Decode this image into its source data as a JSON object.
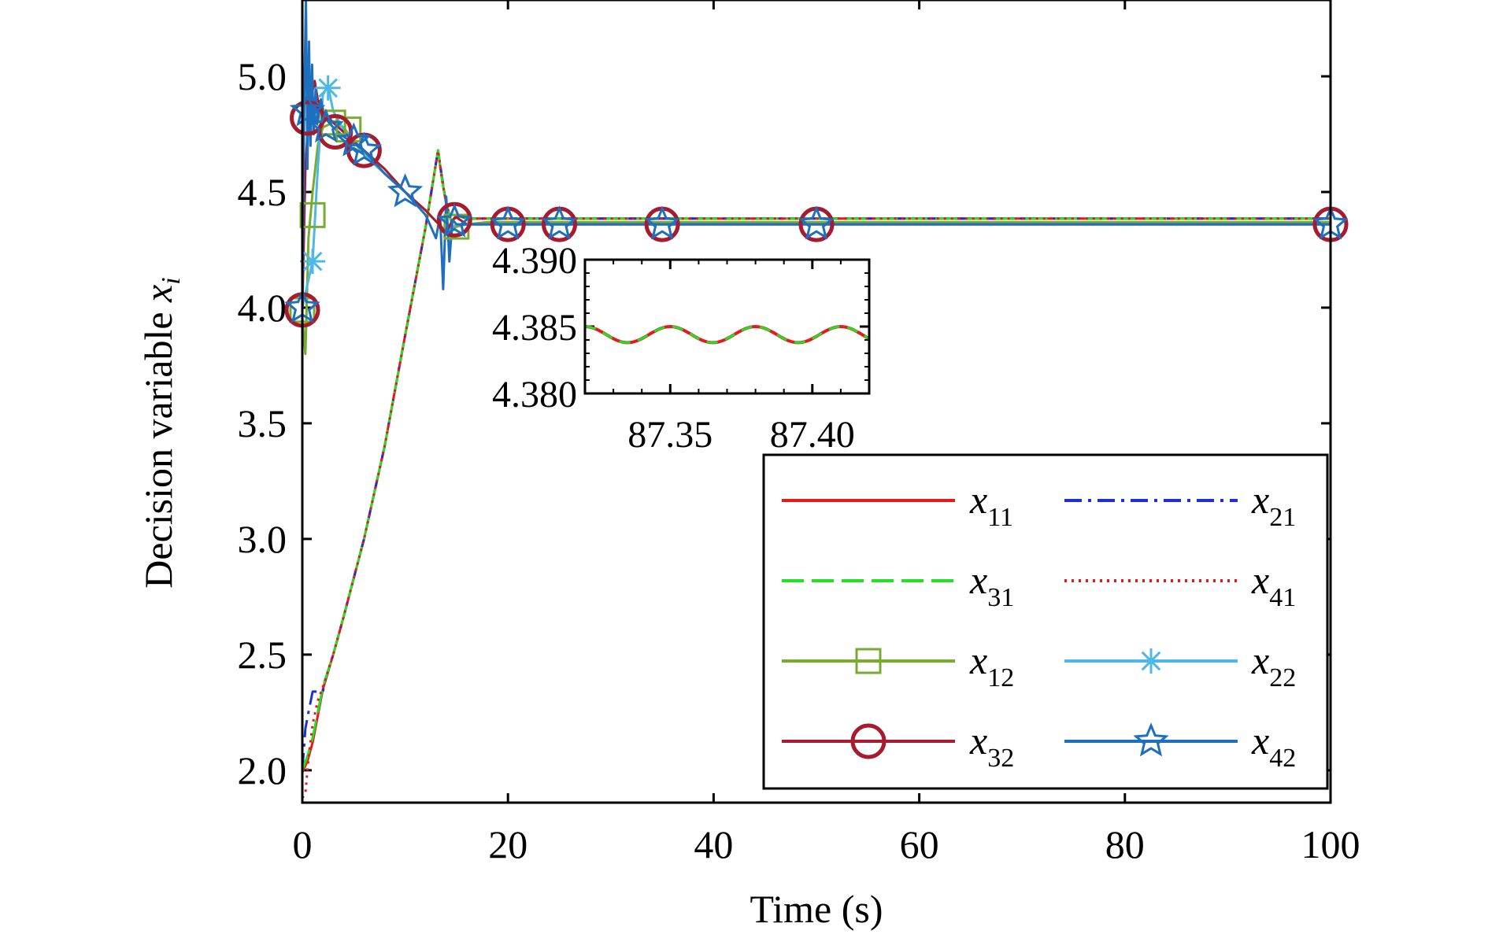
{
  "chart_data": {
    "type": "line",
    "xlabel": "Time (s)",
    "ylabel_main": "Decision variable ",
    "ylabel_var": "x",
    "ylabel_sub": "i",
    "xlim": [
      0,
      100
    ],
    "ylim": [
      1.86,
      5.33
    ],
    "xticks": [
      0,
      20,
      40,
      60,
      80,
      100
    ],
    "yticks": [
      2.0,
      2.5,
      3.0,
      3.5,
      4.0,
      4.5,
      5.0
    ],
    "xtick_labels": [
      "0",
      "20",
      "40",
      "60",
      "80",
      "100"
    ],
    "ytick_labels": [
      "2.0",
      "2.5",
      "3.0",
      "3.5",
      "4.0",
      "4.5",
      "5.0"
    ],
    "grid": false,
    "legend_position": "lower-right",
    "series": [
      {
        "name": "x",
        "sub": "11",
        "color": "#e41a1c",
        "style": "solid",
        "marker": "none",
        "x": [
          0,
          0.5,
          1,
          2,
          3,
          4,
          6,
          8,
          10,
          12,
          13.2,
          13.6,
          14,
          14.5,
          15,
          16,
          18,
          20,
          100
        ],
        "y": [
          1.99,
          2.04,
          2.12,
          2.35,
          2.5,
          2.66,
          3.0,
          3.4,
          3.88,
          4.35,
          4.68,
          4.55,
          4.45,
          4.37,
          4.4,
          4.385,
          4.385,
          4.385,
          4.385
        ]
      },
      {
        "name": "x",
        "sub": "21",
        "color": "#1f2fd6",
        "style": "dashdot",
        "marker": "none",
        "x": [
          0,
          0.3,
          0.6,
          1,
          1.5,
          2,
          2.3,
          3,
          4,
          6,
          8,
          10,
          12,
          13.2,
          13.6,
          14,
          14.5,
          15,
          16,
          18,
          20,
          100
        ],
        "y": [
          2.0,
          2.18,
          2.25,
          2.34,
          2.34,
          2.34,
          2.4,
          2.5,
          2.66,
          3.0,
          3.4,
          3.88,
          4.35,
          4.68,
          4.56,
          4.45,
          4.37,
          4.4,
          4.385,
          4.385,
          4.385,
          4.385
        ]
      },
      {
        "name": "x",
        "sub": "31",
        "color": "#22e022",
        "style": "dashed",
        "marker": "none",
        "x": [
          0,
          0.5,
          1,
          2,
          3,
          4,
          6,
          8,
          10,
          12,
          13.2,
          13.6,
          14,
          14.5,
          15,
          16,
          18,
          20,
          100
        ],
        "y": [
          2.0,
          2.06,
          2.14,
          2.36,
          2.5,
          2.66,
          3.0,
          3.4,
          3.88,
          4.35,
          4.68,
          4.55,
          4.45,
          4.37,
          4.4,
          4.385,
          4.385,
          4.385,
          4.385
        ]
      },
      {
        "name": "x",
        "sub": "41",
        "color": "#e41a1c",
        "style": "dotted",
        "marker": "none",
        "x": [
          0,
          0.3,
          0.6,
          1,
          1.5,
          2,
          3,
          4,
          6,
          8,
          10,
          12,
          13.2,
          13.6,
          14,
          14.5,
          15,
          16,
          18,
          20,
          100
        ],
        "y": [
          1.88,
          1.9,
          2.05,
          2.2,
          2.3,
          2.36,
          2.5,
          2.66,
          3.0,
          3.4,
          3.88,
          4.35,
          4.68,
          4.55,
          4.45,
          4.37,
          4.4,
          4.385,
          4.385,
          4.385,
          4.385
        ]
      },
      {
        "name": "x",
        "sub": "12",
        "color": "#77ac30",
        "style": "solid",
        "marker": "square",
        "x": [
          0,
          0.3,
          0.6,
          1,
          1.5,
          2,
          3,
          4,
          5,
          6,
          8,
          10,
          12,
          13.5,
          14,
          15,
          16,
          18,
          20,
          25,
          35,
          50,
          100
        ],
        "y": [
          3.96,
          3.8,
          4.3,
          4.5,
          4.7,
          4.78,
          4.8,
          4.78,
          4.72,
          4.66,
          4.58,
          4.5,
          4.42,
          4.35,
          4.33,
          4.35,
          4.36,
          4.37,
          4.37,
          4.37,
          4.37,
          4.37,
          4.37
        ],
        "marker_x": [
          0,
          1,
          3,
          4.5,
          15
        ],
        "marker_y": [
          3.99,
          4.4,
          4.8,
          4.77,
          4.35
        ]
      },
      {
        "name": "x",
        "sub": "22",
        "color": "#4db8e8",
        "style": "solid",
        "marker": "asterisk",
        "x": [
          0,
          0.5,
          1,
          1.5,
          2,
          2.5,
          3,
          4,
          6,
          8,
          10,
          12,
          13.5,
          14,
          15,
          16,
          18,
          20,
          100
        ],
        "y": [
          4.0,
          4.1,
          4.2,
          4.6,
          4.92,
          4.96,
          4.85,
          4.77,
          4.67,
          4.58,
          4.5,
          4.42,
          4.35,
          4.33,
          4.36,
          4.36,
          4.36,
          4.36,
          4.36
        ],
        "marker_x": [
          1,
          2.5
        ],
        "marker_y": [
          4.2,
          4.95
        ]
      },
      {
        "name": "x",
        "sub": "32",
        "color": "#a51c30",
        "style": "solid",
        "marker": "circle",
        "x": [
          0,
          0.3,
          0.6,
          0.9,
          1.2,
          1.5,
          2,
          3,
          4,
          6,
          8,
          10,
          12,
          13.5,
          14,
          14.6,
          15,
          16,
          18,
          20,
          25,
          35,
          50,
          100
        ],
        "y": [
          3.99,
          4.6,
          4.82,
          4.92,
          4.98,
          4.9,
          4.85,
          4.8,
          4.76,
          4.68,
          4.6,
          4.5,
          4.42,
          4.35,
          4.32,
          4.38,
          4.39,
          4.36,
          4.36,
          4.36,
          4.36,
          4.36,
          4.36,
          4.36
        ],
        "marker_x": [
          0,
          0.5,
          3.2,
          6,
          14.8,
          20,
          25,
          35,
          50,
          100
        ],
        "marker_y": [
          3.99,
          4.82,
          4.76,
          4.68,
          4.38,
          4.36,
          4.36,
          4.36,
          4.36,
          4.36
        ]
      },
      {
        "name": "x",
        "sub": "42",
        "color": "#1f6fbf",
        "style": "solid",
        "marker": "star",
        "x": [
          0,
          0.2,
          0.35,
          0.5,
          0.65,
          0.8,
          0.95,
          1.1,
          1.3,
          1.5,
          1.8,
          2.2,
          3,
          4,
          6,
          8,
          10,
          12,
          13,
          13.4,
          13.7,
          14,
          14.3,
          14.6,
          15,
          16,
          18,
          20,
          100
        ],
        "y": [
          4.0,
          4.95,
          5.33,
          4.6,
          5.15,
          4.7,
          5.05,
          4.75,
          4.95,
          4.8,
          4.9,
          4.82,
          4.78,
          4.74,
          4.68,
          4.58,
          4.5,
          4.4,
          4.3,
          4.4,
          4.08,
          4.48,
          4.2,
          4.38,
          4.36,
          4.36,
          4.36,
          4.36,
          4.36
        ],
        "marker_x": [
          0,
          0.5,
          2.3,
          5,
          6,
          10,
          14.8,
          20,
          25,
          35,
          50,
          100
        ],
        "marker_y": [
          4.0,
          4.85,
          4.78,
          4.72,
          4.68,
          4.5,
          4.37,
          4.36,
          4.36,
          4.36,
          4.36,
          4.36
        ]
      }
    ],
    "inset": {
      "xlim": [
        87.32,
        87.42
      ],
      "ylim": [
        4.38,
        4.39
      ],
      "xticks": [
        87.35,
        87.4
      ],
      "xtick_labels": [
        "87.35",
        "87.40"
      ],
      "yticks": [
        4.38,
        4.385,
        4.39
      ],
      "ytick_labels": [
        "4.380",
        "4.385",
        "4.390"
      ],
      "baseline": 4.3844,
      "amplitude": 0.0006,
      "period": 0.03,
      "colors": [
        "#e41a1c",
        "#22e022"
      ]
    }
  }
}
